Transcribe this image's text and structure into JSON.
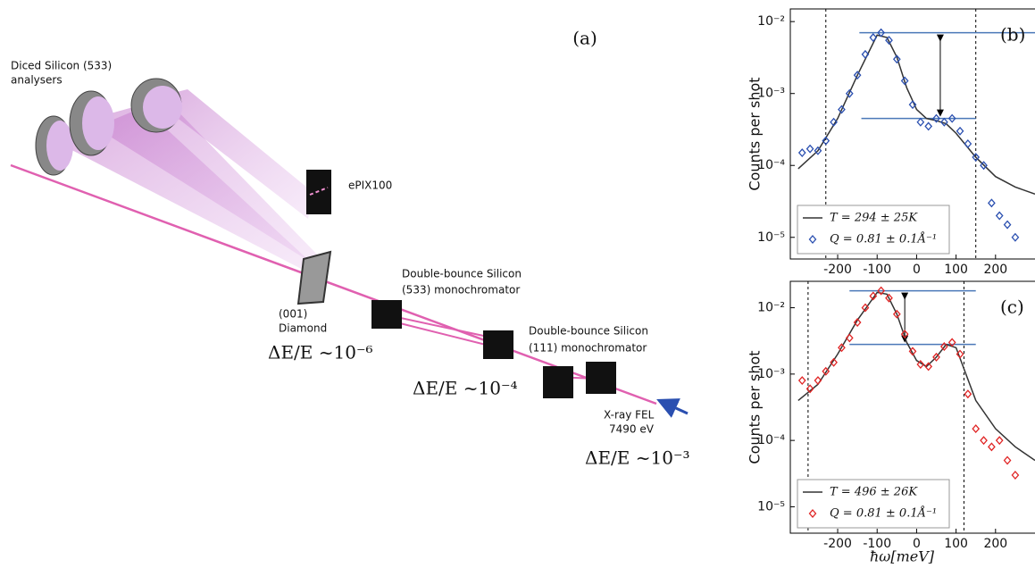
{
  "diagram": {
    "panel_label": "(a)",
    "analysers": [
      "Diced Silicon (533)",
      "analysers"
    ],
    "detector": "ePIX100",
    "diamond": [
      "(001)",
      "Diamond"
    ],
    "mono533": [
      "Double-bounce Silicon",
      "(533) monochromator"
    ],
    "mono111": [
      "Double-bounce Silicon",
      "(111) monochromator"
    ],
    "source": [
      "X-ray FEL",
      "7490 eV"
    ],
    "resolutions": [
      "ΔE/E ~10⁻⁶",
      "ΔE/E ~10⁻⁴",
      "ΔE/E ~10⁻³"
    ]
  },
  "chart_data": [
    {
      "type": "scatter",
      "panel_label": "(b)",
      "y_label": "Counts per shot",
      "log_y": true,
      "legend": "lower left",
      "xlim": [
        -320,
        300
      ],
      "xticks": [
        -200,
        -100,
        0,
        100,
        200
      ],
      "ylim": [
        5e-06,
        0.015
      ],
      "yticks": [
        {
          "value": 0.01,
          "label": "10⁻²"
        },
        {
          "value": 0.001,
          "label": "10⁻³"
        },
        {
          "value": 0.0001,
          "label": "10⁻⁴"
        },
        {
          "value": 1e-05,
          "label": "10⁻⁵"
        }
      ],
      "vlines": [
        -230,
        150
      ],
      "hlines": [
        {
          "y": 0.007,
          "x": [
            -145,
            300
          ]
        },
        {
          "y": 0.00045,
          "x": [
            -140,
            150
          ]
        }
      ],
      "arrow_x": 60,
      "series": [
        {
          "name": "T = 294 ± 25K",
          "style": "line",
          "color": "#333333",
          "x": [
            -300,
            -250,
            -200,
            -150,
            -100,
            -75,
            -50,
            -25,
            0,
            25,
            50,
            75,
            100,
            150,
            200,
            250,
            300
          ],
          "values": [
            9e-05,
            0.00016,
            0.00045,
            0.0018,
            0.0065,
            0.006,
            0.0032,
            0.0012,
            0.0006,
            0.00045,
            0.00042,
            0.00038,
            0.00028,
            0.00013,
            7e-05,
            5e-05,
            4e-05
          ]
        },
        {
          "name": "Q = 0.81 ± 0.1Å⁻¹",
          "style": "marker",
          "color": "#2a4fb0",
          "x": [
            -290,
            -270,
            -250,
            -230,
            -210,
            -190,
            -170,
            -150,
            -130,
            -110,
            -90,
            -70,
            -50,
            -30,
            -10,
            10,
            30,
            50,
            70,
            90,
            110,
            130,
            150,
            170,
            190,
            210,
            230,
            250
          ],
          "values": [
            0.00015,
            0.00017,
            0.00016,
            0.00022,
            0.0004,
            0.0006,
            0.001,
            0.0018,
            0.0035,
            0.006,
            0.007,
            0.0055,
            0.003,
            0.0015,
            0.0007,
            0.0004,
            0.00035,
            0.00045,
            0.0004,
            0.00045,
            0.0003,
            0.0002,
            0.00013,
            0.0001,
            3e-05,
            2e-05,
            1.5e-05,
            1e-05
          ]
        }
      ]
    },
    {
      "type": "scatter",
      "panel_label": "(c)",
      "y_label": "Counts per shot",
      "x_label": "ħω[meV]",
      "log_y": true,
      "legend": "lower left",
      "xlim": [
        -320,
        300
      ],
      "xticks": [
        -200,
        -100,
        0,
        100,
        200
      ],
      "ylim": [
        4e-06,
        0.025
      ],
      "yticks": [
        {
          "value": 0.01,
          "label": "10⁻²"
        },
        {
          "value": 0.001,
          "label": "10⁻³"
        },
        {
          "value": 0.0001,
          "label": "10⁻⁴"
        },
        {
          "value": 1e-05,
          "label": "10⁻⁵"
        }
      ],
      "vlines": [
        -275,
        120
      ],
      "hlines": [
        {
          "y": 0.018,
          "x": [
            -170,
            150
          ]
        },
        {
          "y": 0.0028,
          "x": [
            -170,
            150
          ]
        }
      ],
      "arrow_x": -30,
      "series": [
        {
          "name": "T = 496 ± 26K",
          "style": "line",
          "color": "#333333",
          "x": [
            -300,
            -250,
            -200,
            -150,
            -100,
            -75,
            -50,
            -25,
            0,
            25,
            50,
            75,
            100,
            125,
            150,
            200,
            250,
            300
          ],
          "values": [
            0.0004,
            0.0007,
            0.002,
            0.0065,
            0.017,
            0.016,
            0.008,
            0.003,
            0.0016,
            0.0013,
            0.0018,
            0.0028,
            0.0025,
            0.001,
            0.0004,
            0.00015,
            8e-05,
            5e-05
          ]
        },
        {
          "name": "Q = 0.81 ± 0.1Å⁻¹",
          "style": "marker",
          "color": "#e02424",
          "x": [
            -290,
            -270,
            -250,
            -230,
            -210,
            -190,
            -170,
            -150,
            -130,
            -110,
            -90,
            -70,
            -50,
            -30,
            -10,
            10,
            30,
            50,
            70,
            90,
            110,
            130,
            150,
            170,
            190,
            210,
            230,
            250
          ],
          "values": [
            0.0008,
            0.0006,
            0.0008,
            0.0011,
            0.0015,
            0.0025,
            0.0035,
            0.006,
            0.01,
            0.015,
            0.018,
            0.014,
            0.008,
            0.004,
            0.0022,
            0.0014,
            0.0013,
            0.0018,
            0.0026,
            0.003,
            0.002,
            0.0005,
            0.00015,
            0.0001,
            8e-05,
            0.0001,
            5e-05,
            3e-05
          ]
        }
      ]
    }
  ]
}
